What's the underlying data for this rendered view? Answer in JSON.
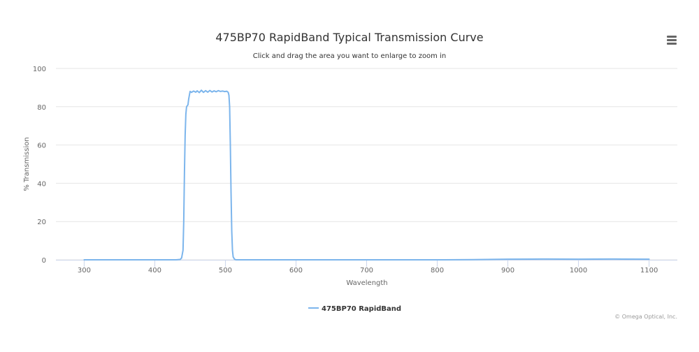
{
  "chart_data": {
    "type": "line",
    "title": "475BP70 RapidBand Typical Transmission Curve",
    "subtitle": "Click and drag the area you want to enlarge to zoom in",
    "xlabel": "Wavelength",
    "ylabel": "% Transmission",
    "xlim": [
      260,
      1140
    ],
    "ylim": [
      0,
      100
    ],
    "x_ticks": [
      "300",
      "400",
      "500",
      "600",
      "700",
      "800",
      "900",
      "1000",
      "1100"
    ],
    "y_ticks": [
      "0",
      "20",
      "40",
      "60",
      "80",
      "100"
    ],
    "grid": true,
    "legend_position": "bottom-center",
    "credits": "© Omega Optical, Inc.",
    "series": [
      {
        "name": "475BP70 RapidBand",
        "color": "#7cb5ec",
        "x": [
          300,
          350,
          400,
          430,
          436,
          438,
          440,
          441,
          442,
          443,
          444,
          445,
          446,
          447,
          448,
          450,
          452,
          455,
          458,
          460,
          463,
          466,
          469,
          472,
          475,
          478,
          481,
          484,
          487,
          490,
          493,
          496,
          499,
          502,
          504,
          505,
          506,
          507,
          508,
          509,
          510,
          511,
          513,
          515,
          520,
          550,
          600,
          700,
          800,
          850,
          900,
          950,
          1000,
          1050,
          1100
        ],
        "y": [
          0,
          0,
          0,
          0,
          0.2,
          1,
          5,
          20,
          45,
          65,
          76,
          80,
          80.5,
          81,
          84,
          88,
          87.5,
          88.2,
          87.6,
          88.3,
          87.4,
          88.6,
          87.5,
          88.4,
          87.6,
          88.5,
          87.7,
          88.3,
          87.8,
          88.4,
          88.0,
          88.2,
          87.9,
          88.1,
          87.5,
          86,
          80,
          60,
          35,
          15,
          5,
          1.5,
          0.3,
          0,
          0,
          0,
          0,
          0,
          0,
          0.1,
          0.3,
          0.4,
          0.3,
          0.4,
          0.3
        ]
      }
    ]
  },
  "ui": {
    "menu_icon": "hamburger-menu-icon"
  }
}
